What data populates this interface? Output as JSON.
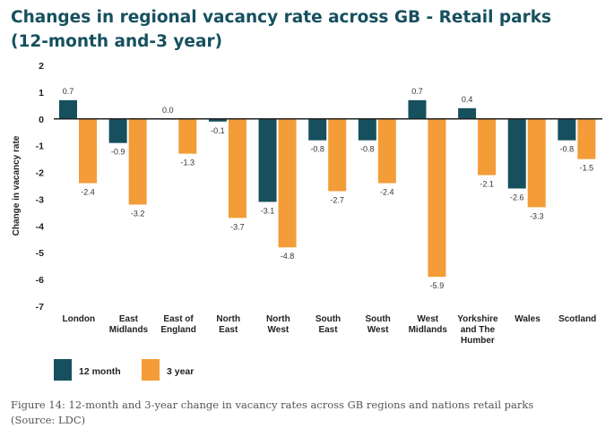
{
  "title_line1": "Changes in regional vacancy rate across GB - Retail parks",
  "title_line2": "(12-month and-3 year)",
  "caption_line1": "Figure 14: 12-month and 3-year change in vacancy rates across GB regions and nations retail parks",
  "caption_line2": "(Source: LDC)",
  "colors": {
    "twelve_month": "#16505e",
    "three_year": "#f39c38",
    "axis": "#222222"
  },
  "chart_data": {
    "type": "bar",
    "title": "Changes in regional vacancy rate across GB - Retail parks (12-month and-3 year)",
    "xlabel": "",
    "ylabel": "Change in vacancy rate",
    "ylim": [
      -7,
      2
    ],
    "yticks": [
      2,
      1,
      0,
      -1,
      -2,
      -3,
      -4,
      -5,
      -6,
      -7
    ],
    "grid": false,
    "legend_position": "bottom-left",
    "categories": [
      [
        "London"
      ],
      [
        "East",
        "Midlands"
      ],
      [
        "East of",
        "England"
      ],
      [
        "North",
        "East"
      ],
      [
        "North",
        "West"
      ],
      [
        "South",
        "East"
      ],
      [
        "South",
        "West"
      ],
      [
        "West",
        "Midlands"
      ],
      [
        "Yorkshire",
        "and The",
        "Humber"
      ],
      [
        "Wales"
      ],
      [
        "Scotland"
      ]
    ],
    "series": [
      {
        "name": "12 month",
        "values": [
          0.7,
          -0.9,
          0.0,
          -0.1,
          -3.1,
          -0.8,
          -0.8,
          0.7,
          0.4,
          -2.6,
          -0.8
        ]
      },
      {
        "name": "3 year",
        "values": [
          -2.4,
          -3.2,
          -1.3,
          -3.7,
          -4.8,
          -2.7,
          -2.4,
          -5.9,
          -2.1,
          -3.3,
          -1.5
        ]
      }
    ]
  }
}
